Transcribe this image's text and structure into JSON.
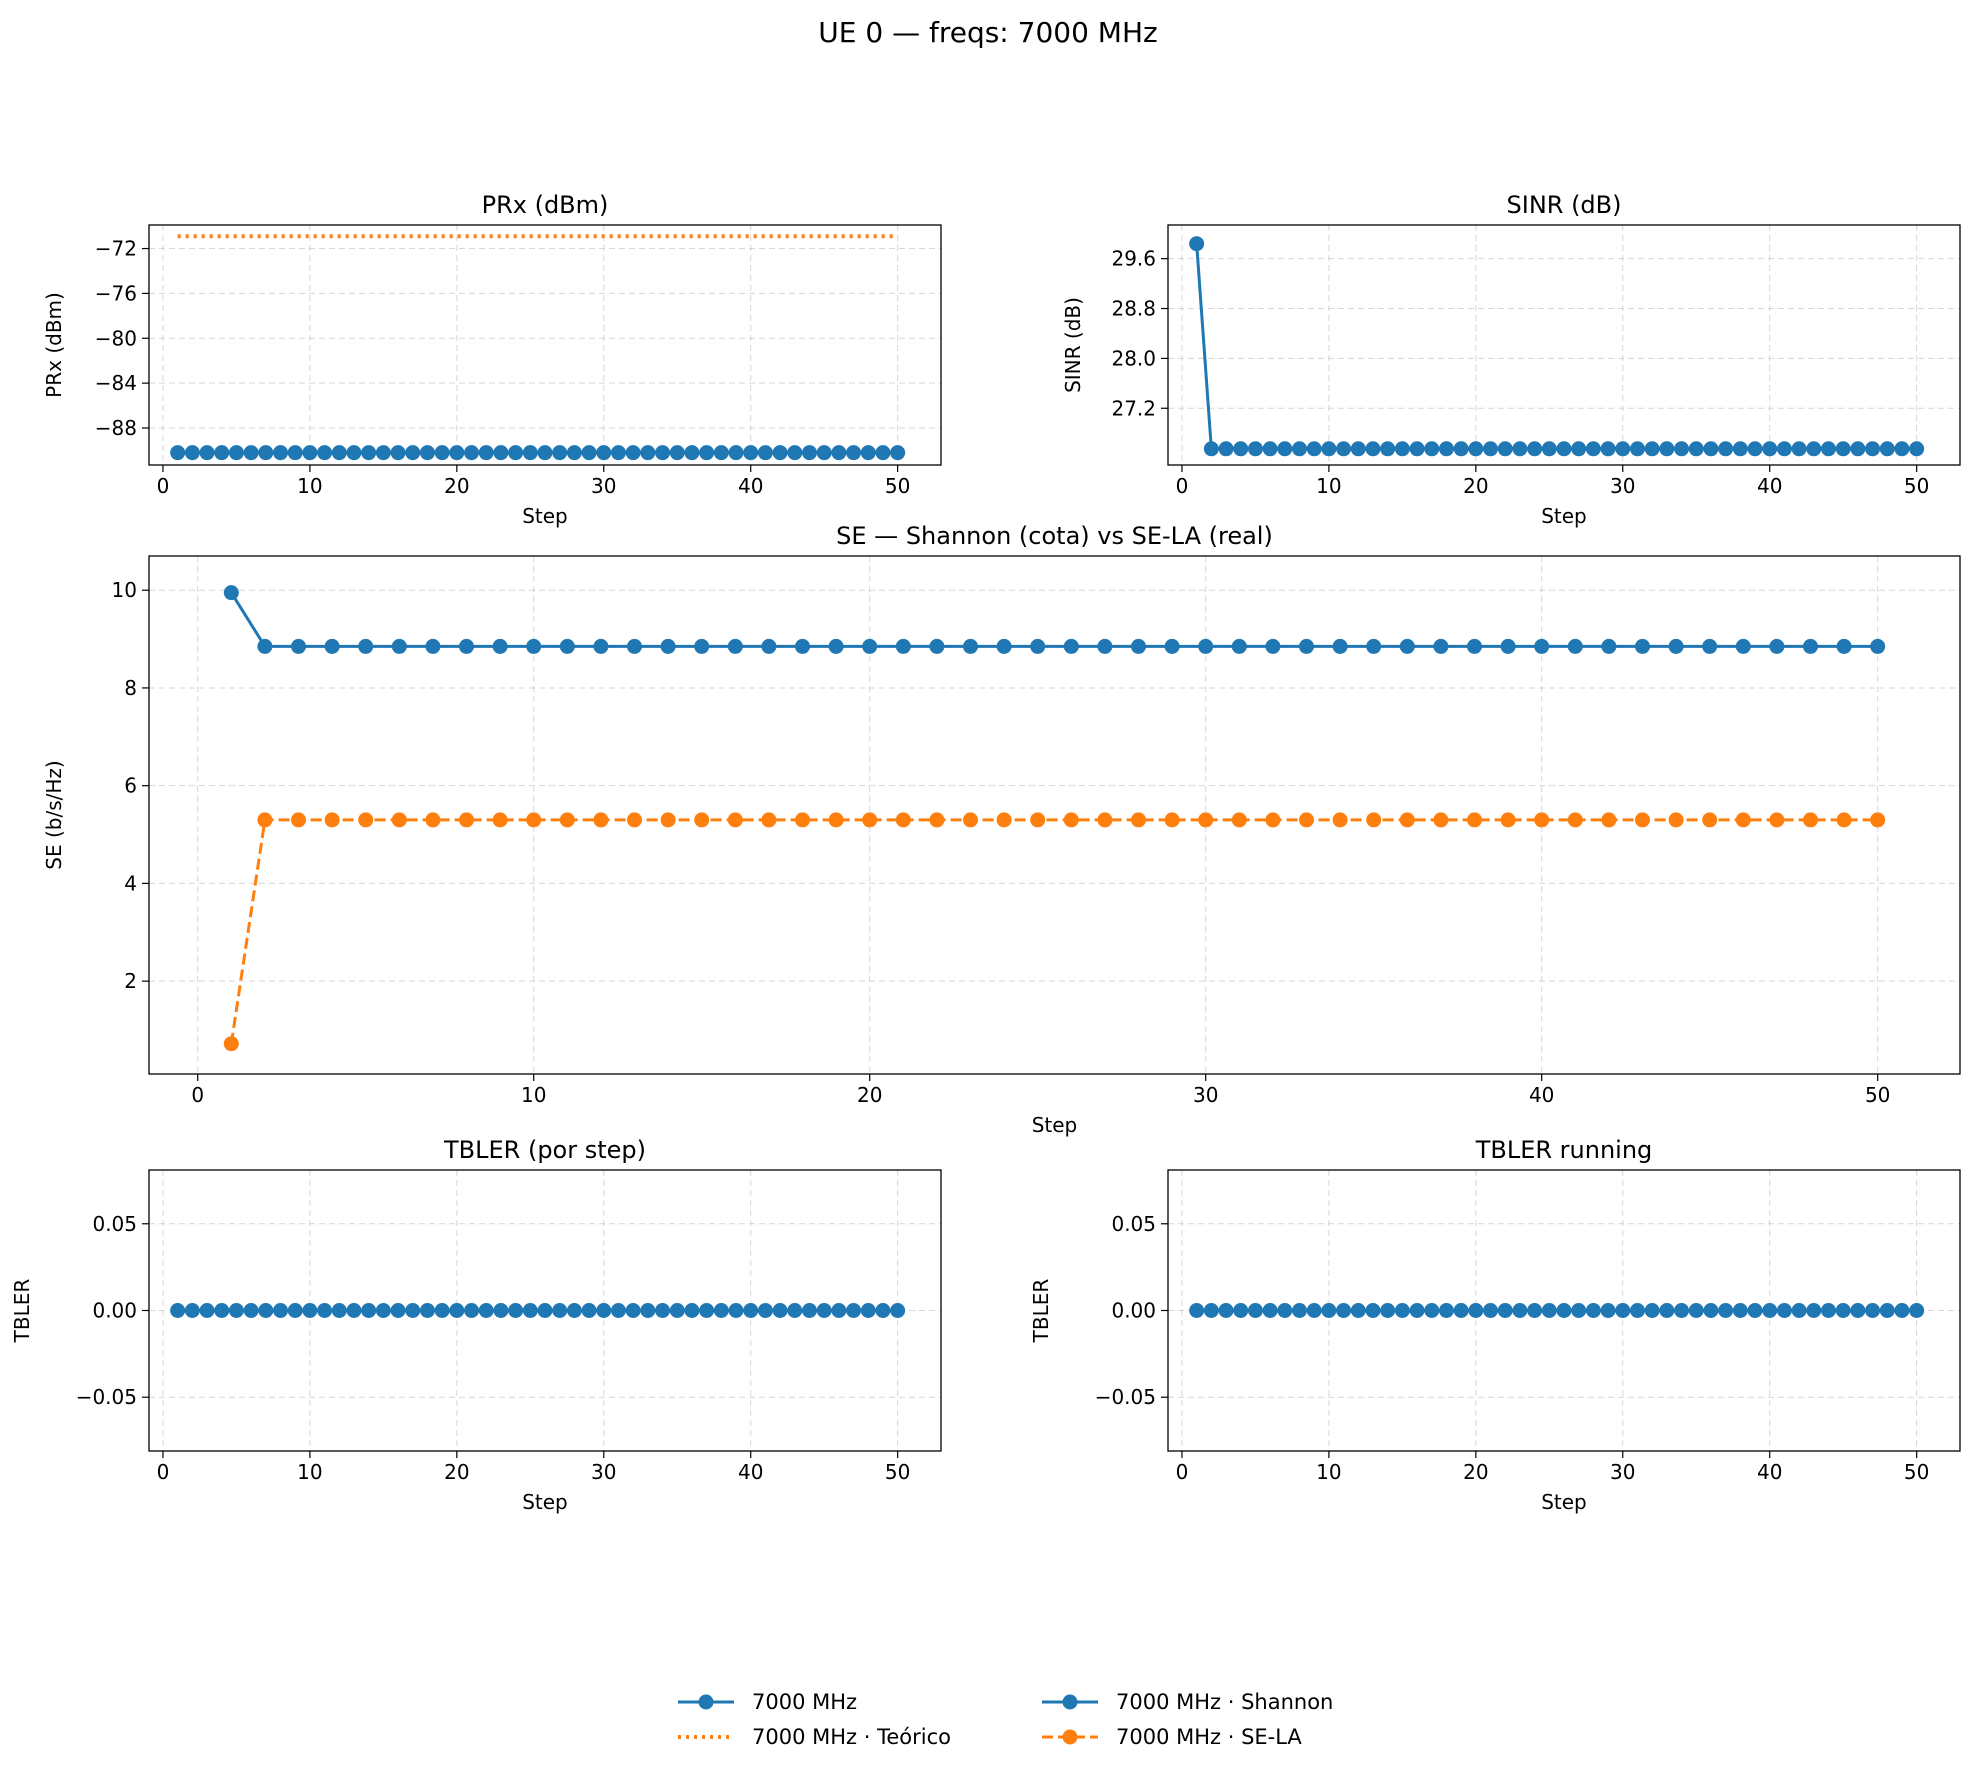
{
  "figure": {
    "title": "UE 0 — freqs: 7000 MHz"
  },
  "legend": {
    "items": [
      {
        "label": "7000 MHz",
        "style": "solid-marker",
        "color": "#1f77b4"
      },
      {
        "label": "7000 MHz · Teórico",
        "style": "dotted",
        "color": "#ff7f0e"
      },
      {
        "label": "7000 MHz · Shannon",
        "style": "solid-marker",
        "color": "#1f77b4"
      },
      {
        "label": "7000 MHz · SE-LA",
        "style": "dashed-marker",
        "color": "#ff7f0e"
      }
    ]
  },
  "chart_data": [
    {
      "id": "prx",
      "type": "line",
      "title": "PRx (dBm)",
      "xlabel": "Step",
      "ylabel": "PRx (dBm)",
      "xlim": [
        -0.95,
        52.95
      ],
      "ylim": [
        -91.3,
        -69.9
      ],
      "xticks": [
        0,
        10,
        20,
        30,
        40,
        50
      ],
      "yticks": [
        -88,
        -84,
        -80,
        -76,
        -72
      ],
      "grid": true,
      "x_range": [
        1,
        50
      ],
      "series": [
        {
          "name": "7000 MHz",
          "color": "#1f77b4",
          "style": "solid-marker",
          "y_constant": -90.2
        },
        {
          "name": "7000 MHz · Teórico",
          "color": "#ff7f0e",
          "style": "dotted",
          "y_constant": -70.9
        }
      ]
    },
    {
      "id": "sinr",
      "type": "line",
      "title": "SINR (dB)",
      "xlabel": "Step",
      "ylabel": "SINR (dB)",
      "xlim": [
        -0.95,
        52.95
      ],
      "ylim": [
        26.29,
        30.14
      ],
      "xticks": [
        0,
        10,
        20,
        30,
        40,
        50
      ],
      "yticks": [
        27.2,
        28.0,
        28.8,
        29.6
      ],
      "grid": true,
      "x_range": [
        1,
        50
      ],
      "series": [
        {
          "name": "7000 MHz",
          "color": "#1f77b4",
          "style": "solid-marker",
          "y_first": 29.84,
          "y_rest": 26.55
        }
      ]
    },
    {
      "id": "se",
      "type": "line",
      "title": "SE — Shannon (cota) vs SE-LA (real)",
      "xlabel": "Step",
      "ylabel": "SE (b/s/Hz)",
      "xlim": [
        -1.45,
        52.45
      ],
      "ylim": [
        0.1,
        10.7
      ],
      "xticks": [
        0,
        10,
        20,
        30,
        40,
        50
      ],
      "yticks": [
        2,
        4,
        6,
        8,
        10
      ],
      "grid": true,
      "x_range": [
        1,
        50
      ],
      "series": [
        {
          "name": "7000 MHz · Shannon",
          "color": "#1f77b4",
          "style": "solid-marker",
          "y_first": 9.95,
          "y_rest": 8.85
        },
        {
          "name": "7000 MHz · SE-LA",
          "color": "#ff7f0e",
          "style": "dashed-marker",
          "y_first": 0.72,
          "y_rest": 5.3
        }
      ]
    },
    {
      "id": "tbler",
      "type": "line",
      "title": "TBLER (por step)",
      "xlabel": "Step",
      "ylabel": "TBLER",
      "xlim": [
        -0.95,
        52.95
      ],
      "ylim": [
        -0.081,
        0.081
      ],
      "xticks": [
        0,
        10,
        20,
        30,
        40,
        50
      ],
      "yticks": [
        -0.05,
        0.0,
        0.05
      ],
      "grid": true,
      "x_range": [
        1,
        50
      ],
      "series": [
        {
          "name": "7000 MHz",
          "color": "#1f77b4",
          "style": "solid-marker",
          "y_constant": 0.0
        }
      ]
    },
    {
      "id": "tbler_running",
      "type": "line",
      "title": "TBLER running",
      "xlabel": "Step",
      "ylabel": "TBLER",
      "xlim": [
        -0.95,
        52.95
      ],
      "ylim": [
        -0.081,
        0.081
      ],
      "xticks": [
        0,
        10,
        20,
        30,
        40,
        50
      ],
      "yticks": [
        -0.05,
        0.0,
        0.05
      ],
      "grid": true,
      "x_range": [
        1,
        50
      ],
      "series": [
        {
          "name": "7000 MHz",
          "color": "#1f77b4",
          "style": "solid-marker",
          "y_constant": 0.0
        }
      ]
    }
  ]
}
